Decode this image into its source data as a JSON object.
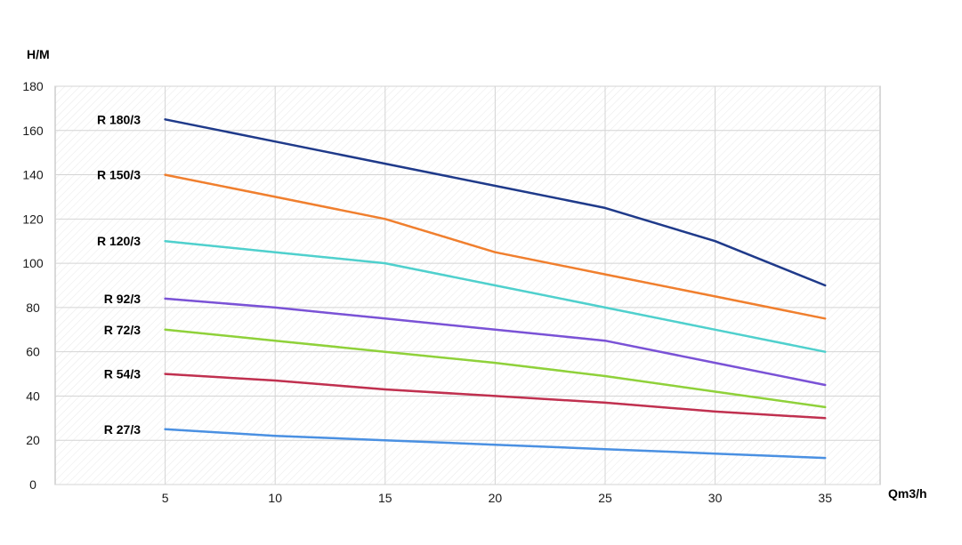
{
  "chart_data": {
    "type": "line",
    "title": "",
    "ylabel": "H/M",
    "xlabel": "Qm3/h",
    "xlim": [
      0,
      37.5
    ],
    "ylim": [
      0,
      180
    ],
    "x_ticks": [
      5,
      10,
      15,
      20,
      25,
      30,
      35
    ],
    "y_ticks": [
      0,
      20,
      40,
      60,
      80,
      100,
      120,
      140,
      160,
      180
    ],
    "grid": true,
    "legend": "series labels at left of each line",
    "x": [
      5,
      10,
      15,
      20,
      25,
      30,
      35
    ],
    "series": [
      {
        "name": "R 180/3",
        "color": "#1f3a8a",
        "values": [
          165,
          155,
          145,
          135,
          125,
          110,
          90
        ]
      },
      {
        "name": "R 150/3",
        "color": "#f07f2e",
        "values": [
          140,
          130,
          120,
          105,
          95,
          85,
          75
        ]
      },
      {
        "name": "R 120/3",
        "color": "#4fd0cd",
        "values": [
          110,
          105,
          100,
          90,
          80,
          70,
          60
        ]
      },
      {
        "name": "R 92/3",
        "color": "#7a52d6",
        "values": [
          84,
          80,
          75,
          70,
          65,
          55,
          45
        ]
      },
      {
        "name": "R 72/3",
        "color": "#8fd13a",
        "values": [
          70,
          65,
          60,
          55,
          49,
          42,
          35
        ]
      },
      {
        "name": "R 54/3",
        "color": "#c0304f",
        "values": [
          50,
          47,
          43,
          40,
          37,
          33,
          30
        ]
      },
      {
        "name": "R 27/3",
        "color": "#4a90e2",
        "values": [
          25,
          22,
          20,
          18,
          16,
          14,
          12
        ]
      }
    ]
  }
}
